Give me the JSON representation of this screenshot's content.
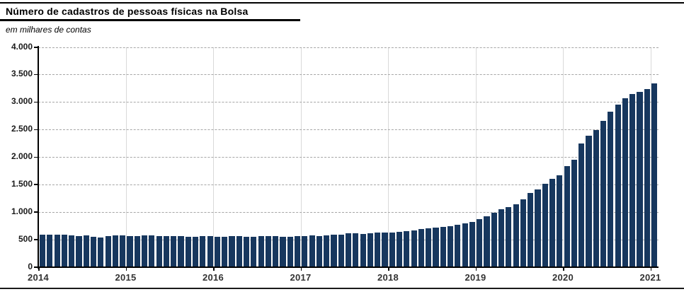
{
  "header": {
    "title": "Número de cadastros de pessoas físicas na Bolsa",
    "subtitle": "em milhares de contas"
  },
  "colors": {
    "bar": "#17375E",
    "dashed_gridline": "#A6A6A6",
    "year_gridline": "#D9D9D9",
    "axis": "#000000",
    "label": "#1A1A1A"
  },
  "chart_data": {
    "type": "bar",
    "title": "Número de cadastros de pessoas físicas na Bolsa",
    "unit_label": "em milhares de contas",
    "ylim": [
      0,
      4000
    ],
    "grid": "horizontal-dashed-every-500, vertical-light-line-at-each-year",
    "legend": "none",
    "y_ticks": [
      {
        "value": 0,
        "label": "0"
      },
      {
        "value": 500,
        "label": "500"
      },
      {
        "value": 1000,
        "label": "1.000"
      },
      {
        "value": 1500,
        "label": "1.500"
      },
      {
        "value": 2000,
        "label": "2.000"
      },
      {
        "value": 2500,
        "label": "2.500"
      },
      {
        "value": 3000,
        "label": "3.000"
      },
      {
        "value": 3500,
        "label": "3.500"
      },
      {
        "value": 4000,
        "label": "4.000"
      }
    ],
    "x_tick_labels": [
      "2014",
      "2015",
      "2016",
      "2017",
      "2018",
      "2019",
      "2020",
      "2021"
    ],
    "series_by_year": [
      {
        "year": "2014",
        "values": [
          581,
          585,
          585,
          580,
          566,
          563,
          571,
          549,
          536,
          560,
          571,
          566
        ]
      },
      {
        "year": "2015",
        "values": [
          558,
          565,
          574,
          574,
          560,
          558,
          558,
          556,
          549,
          549,
          556,
          557
        ]
      },
      {
        "year": "2016",
        "values": [
          549,
          549,
          557,
          557,
          550,
          549,
          557,
          558,
          557,
          550,
          549,
          564
        ]
      },
      {
        "year": "2017",
        "values": [
          558,
          566,
          560,
          574,
          587,
          588,
          605,
          607,
          597,
          610,
          620,
          620
        ]
      },
      {
        "year": "2018",
        "values": [
          628,
          640,
          655,
          668,
          686,
          705,
          713,
          730,
          744,
          769,
          791,
          813
        ]
      },
      {
        "year": "2019",
        "values": [
          866,
          915,
          983,
          1048,
          1091,
          1134,
          1228,
          1349,
          1414,
          1508,
          1602,
          1665
        ]
      },
      {
        "year": "2020",
        "values": [
          1830,
          1949,
          2245,
          2390,
          2485,
          2655,
          2819,
          2955,
          3067,
          3150,
          3180,
          3229
        ]
      },
      {
        "year": "2021",
        "values": [
          3340
        ]
      }
    ]
  }
}
